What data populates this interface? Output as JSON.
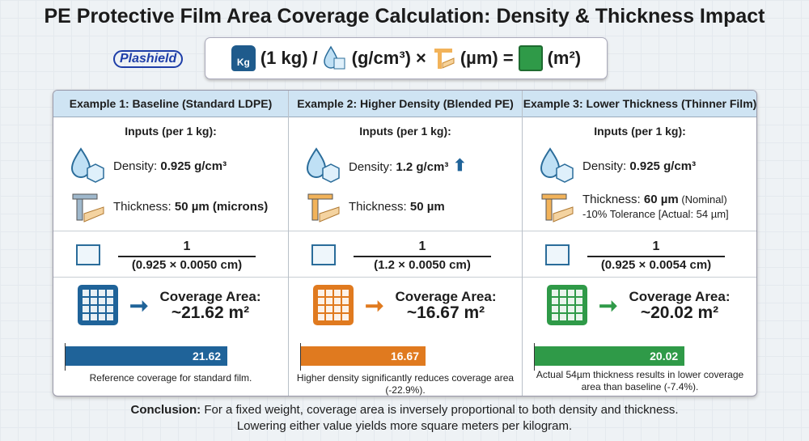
{
  "title": "PE Protective Film Area Coverage Calculation: Density & Thickness Impact",
  "logo": "Plashield",
  "formula": {
    "weight": "(1 kg)",
    "div": "/",
    "density": "(g/cm³)",
    "times": "×",
    "thickness": "(µm)",
    "eq": "=",
    "area": "(m²)",
    "kg_label": "Kg"
  },
  "inputs_label": "Inputs (per 1 kg):",
  "coverage_label": "Coverage Area:",
  "examples": [
    {
      "header": "Example 1: Baseline (Standard LDPE)",
      "density_label": "Density: ",
      "density_value": "0.925 g/cm³",
      "thickness_label": "Thickness: ",
      "thickness_value": "50 µm (microns)",
      "thickness_note": "",
      "numerator": "1",
      "denominator": "(0.925 × 0.0050 cm)",
      "coverage": "~21.62 m²",
      "bar_value": 21.62,
      "bar_label": "21.62",
      "caption": "Reference coverage for standard film.",
      "color": "#1f6399"
    },
    {
      "header": "Example 2: Higher Density (Blended PE)",
      "density_label": "Density: ",
      "density_value": "1.2 g/cm³",
      "thickness_label": "Thickness: ",
      "thickness_value": "50 µm",
      "thickness_note": "",
      "numerator": "1",
      "denominator": "(1.2 × 0.0050 cm)",
      "coverage": "~16.67 m²",
      "bar_value": 16.67,
      "bar_label": "16.67",
      "caption": "Higher density significantly reduces coverage area (-22.9%).",
      "color": "#e07a1f"
    },
    {
      "header": "Example 3: Lower Thickness (Thinner Film)",
      "density_label": "Density: ",
      "density_value": "0.925 g/cm³",
      "thickness_label": "Thickness: ",
      "thickness_value": "60 µm",
      "thickness_suffix": " (Nominal)",
      "thickness_note": "-10% Tolerance [Actual: 54 µm]",
      "numerator": "1",
      "denominator": "(0.925 × 0.0054 cm)",
      "coverage": "~20.02 m²",
      "bar_value": 20.02,
      "bar_label": "20.02",
      "caption": "Actual 54µm thickness results in lower coverage area than baseline (-7.4%).",
      "color": "#2f9a48"
    }
  ],
  "conclusion": {
    "lead": "Conclusion:",
    "line1": " For a fixed weight, coverage area is inversely proportional to both density and thickness.",
    "line2": "Lowering either value yields more square meters per kilogram."
  }
}
